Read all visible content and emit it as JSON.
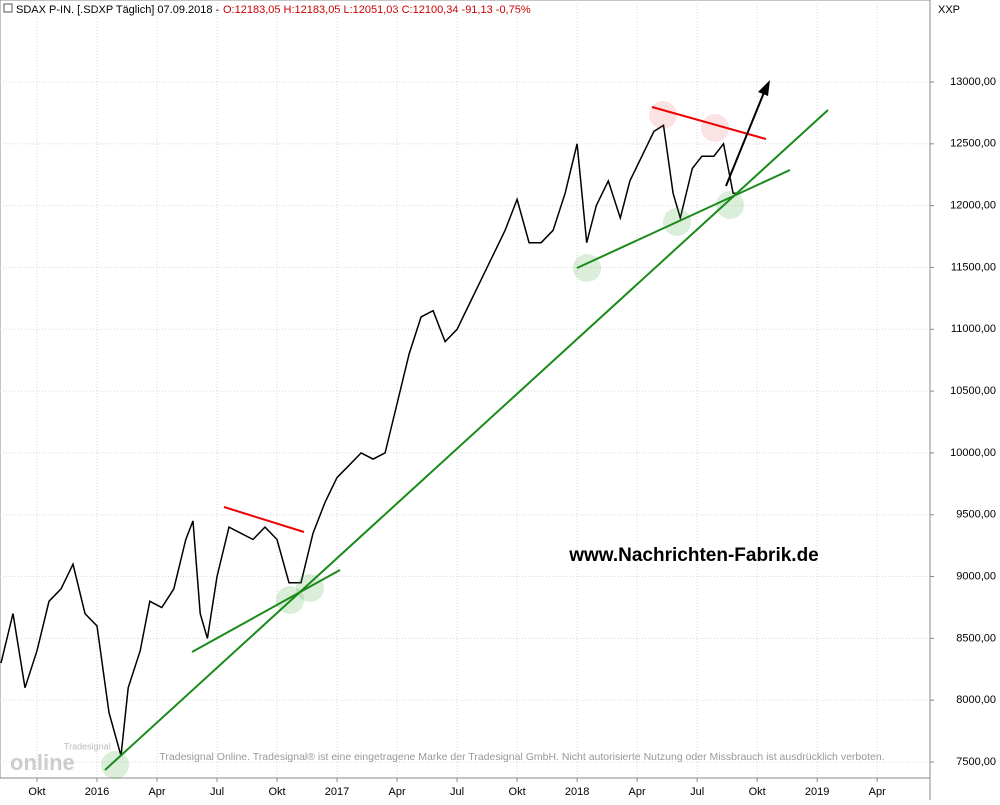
{
  "chart_data": {
    "type": "line",
    "header": {
      "instrument": "SDAX P-IN. [.SDXP  Täglich] 07.09.2018 -",
      "ohlc": "O:12183,05 H:12183,05 L:12051,03 C:12100,34 -91,13 -0,75%"
    },
    "axis_name": "XXP",
    "watermark": "www.Nachrichten-Fabrik.de",
    "disclaimer": "Tradesignal Online. Tradesignal® ist eine eingetragene Marke der Tradesignal GmbH. Nicht autorisierte Nutzung oder Missbrauch ist ausdrücklich verboten.",
    "logo": "online",
    "logo_small": "Tradesignal",
    "color": "#000000",
    "x": [
      2015.6,
      2015.65,
      2015.7,
      2015.75,
      2015.8,
      2015.85,
      2015.9,
      2015.95,
      2016.0,
      2016.05,
      2016.1,
      2016.13,
      2016.18,
      2016.22,
      2016.27,
      2016.32,
      2016.37,
      2016.4,
      2016.43,
      2016.46,
      2016.5,
      2016.55,
      2016.6,
      2016.65,
      2016.7,
      2016.75,
      2016.8,
      2016.85,
      2016.9,
      2016.95,
      2017.0,
      2017.05,
      2017.1,
      2017.15,
      2017.2,
      2017.25,
      2017.3,
      2017.35,
      2017.4,
      2017.45,
      2017.5,
      2017.55,
      2017.6,
      2017.65,
      2017.7,
      2017.75,
      2017.8,
      2017.85,
      2017.9,
      2017.95,
      2018.0,
      2018.04,
      2018.08,
      2018.13,
      2018.18,
      2018.22,
      2018.27,
      2018.32,
      2018.36,
      2018.4,
      2018.43,
      2018.48,
      2018.52,
      2018.57,
      2018.61,
      2018.65,
      2018.68
    ],
    "values": [
      8300,
      8700,
      8100,
      8400,
      8800,
      8900,
      9100,
      8700,
      8600,
      7900,
      7550,
      8100,
      8400,
      8800,
      8750,
      8900,
      9300,
      9450,
      8700,
      8500,
      9000,
      9400,
      9350,
      9300,
      9400,
      9300,
      8950,
      8950,
      9350,
      9600,
      9800,
      9900,
      10000,
      9950,
      10000,
      10400,
      10800,
      11100,
      11150,
      10900,
      11000,
      11200,
      11400,
      11600,
      11800,
      12050,
      11700,
      11700,
      11800,
      12100,
      12500,
      11700,
      12000,
      12200,
      11900,
      12200,
      12400,
      12600,
      12650,
      12100,
      11900,
      12300,
      12400,
      12400,
      12500,
      12100,
      12100
    ],
    "xlim": [
      2015.596,
      2019.47
    ],
    "xticks": [
      {
        "value": 2015.75,
        "label": "Okt"
      },
      {
        "value": 2016.0,
        "label": "2016"
      },
      {
        "value": 2016.25,
        "label": "Apr"
      },
      {
        "value": 2016.5,
        "label": "Jul"
      },
      {
        "value": 2016.75,
        "label": "Okt"
      },
      {
        "value": 2017.0,
        "label": "2017"
      },
      {
        "value": 2017.25,
        "label": "Apr"
      },
      {
        "value": 2017.5,
        "label": "Jul"
      },
      {
        "value": 2017.75,
        "label": "Okt"
      },
      {
        "value": 2018.0,
        "label": "2018"
      },
      {
        "value": 2018.25,
        "label": "Apr"
      },
      {
        "value": 2018.5,
        "label": "Jul"
      },
      {
        "value": 2018.75,
        "label": "Okt"
      },
      {
        "value": 2019.0,
        "label": "2019"
      },
      {
        "value": 2019.25,
        "label": "Apr"
      }
    ],
    "ylim": [
      7395,
      13663
    ],
    "yticks": [
      {
        "value": 7500,
        "label": "7500,00"
      },
      {
        "value": 8000,
        "label": "8000,00"
      },
      {
        "value": 8500,
        "label": "8500,00"
      },
      {
        "value": 9000,
        "label": "9000,00"
      },
      {
        "value": 9500,
        "label": "9500,00"
      },
      {
        "value": 10000,
        "label": "10000,00"
      },
      {
        "value": 10500,
        "label": "10500,00"
      },
      {
        "value": 11000,
        "label": "11000,00"
      },
      {
        "value": 11500,
        "label": "11500,00"
      },
      {
        "value": 12000,
        "label": "12000,00"
      },
      {
        "value": 12500,
        "label": "12500,00"
      },
      {
        "value": 13000,
        "label": "13000,00"
      }
    ],
    "grid": true
  }
}
